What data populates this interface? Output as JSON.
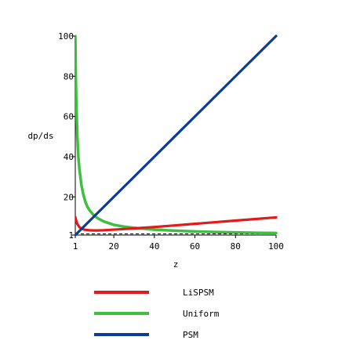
{
  "chart_data": {
    "type": "line",
    "xlabel": "z",
    "ylabel": "dp/ds",
    "xlim": [
      1,
      100
    ],
    "ylim": [
      1,
      100
    ],
    "x_ticks": [
      1,
      20,
      40,
      60,
      80,
      100
    ],
    "y_ticks": [
      1,
      20,
      40,
      60,
      80,
      100
    ],
    "grid": false,
    "legend_position": "bottom",
    "series": [
      {
        "name": "LiSPSM",
        "color": "#e31a1c",
        "x": [
          1,
          1.5,
          2,
          3,
          4,
          5,
          6,
          8,
          10,
          12,
          15,
          20,
          25,
          30,
          40,
          50,
          60,
          70,
          80,
          90,
          100
        ],
        "y": [
          10,
          8,
          6.5,
          5,
          4.2,
          3.8,
          3.6,
          3.4,
          3.3,
          3.3,
          3.4,
          3.7,
          4.0,
          4.3,
          5.0,
          5.8,
          6.6,
          7.4,
          8.2,
          9.0,
          9.8
        ]
      },
      {
        "name": "Uniform",
        "color": "#3fbf3f",
        "x": [
          1,
          1.25,
          1.5,
          2,
          2.5,
          3,
          4,
          5,
          6,
          7,
          8,
          10,
          12,
          15,
          20,
          25,
          30,
          40,
          50,
          60,
          70,
          80,
          90,
          100
        ],
        "y": [
          100,
          80,
          67,
          50,
          40,
          34,
          26,
          21,
          17.5,
          15,
          13.4,
          11,
          9.4,
          7.8,
          6.1,
          5.2,
          4.6,
          3.7,
          3.2,
          2.8,
          2.5,
          2.3,
          2.1,
          2.0
        ]
      },
      {
        "name": "PSM",
        "color": "#0b3c9c",
        "x": [
          1,
          100
        ],
        "y": [
          1,
          100
        ]
      }
    ]
  }
}
